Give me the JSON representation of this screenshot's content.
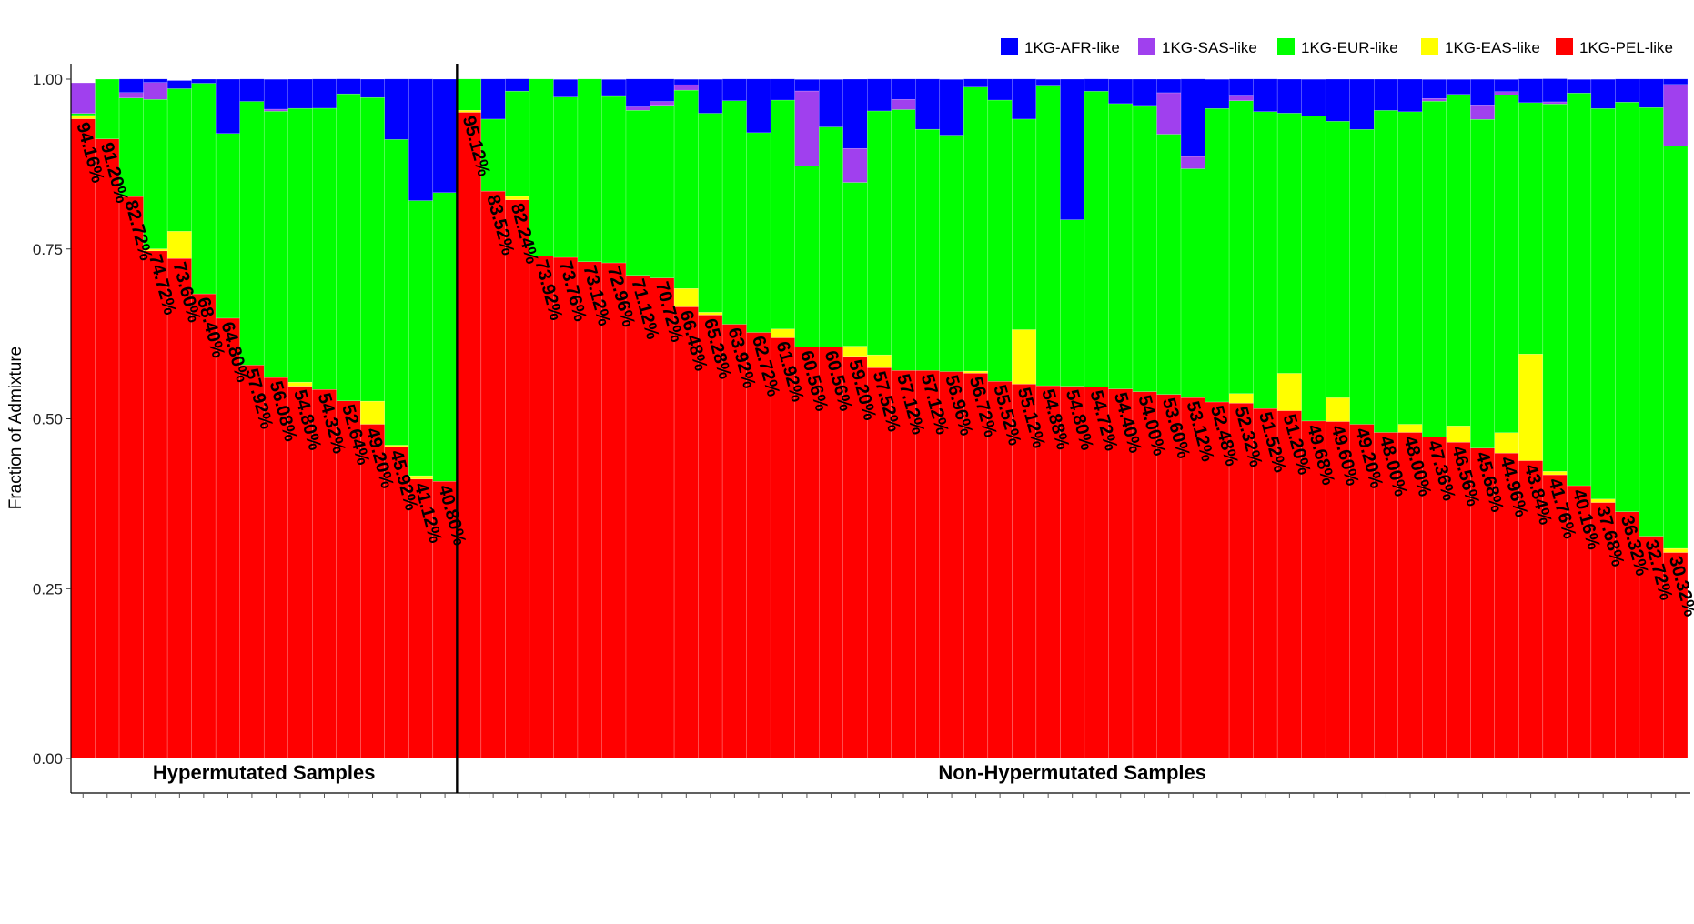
{
  "chart_data": {
    "type": "bar",
    "stacked": true,
    "ylabel": "Fraction of Admixture",
    "ylim": [
      0,
      1
    ],
    "yticks": [
      "0.00",
      "0.25",
      "0.50",
      "0.75",
      "1.00"
    ],
    "legend_position": "top-right",
    "series": [
      {
        "name": "1KG-PEL-like",
        "color": "#ff0000"
      },
      {
        "name": "1KG-EAS-like",
        "color": "#ffff00"
      },
      {
        "name": "1KG-EUR-like",
        "color": "#00ff00"
      },
      {
        "name": "1KG-SAS-like",
        "color": "#a040ee"
      },
      {
        "name": "1KG-AFR-like",
        "color": "#0000ff"
      }
    ],
    "legend_order": [
      "1KG-AFR-like",
      "1KG-SAS-like",
      "1KG-EUR-like",
      "1KG-EAS-like",
      "1KG-PEL-like"
    ],
    "groups": [
      {
        "name": "Hypermutated Samples",
        "samples": [
          {
            "label": "94.16%",
            "PEL": 0.9416,
            "EAS": 0.005,
            "EUR": 0.003,
            "SAS": 0.045,
            "AFR": 0.0
          },
          {
            "label": "91.20%",
            "PEL": 0.912,
            "EAS": 0.0,
            "EUR": 0.088,
            "SAS": 0.0,
            "AFR": 0.0
          },
          {
            "label": "82.72%",
            "PEL": 0.8272,
            "EAS": 0.0,
            "EUR": 0.145,
            "SAS": 0.008,
            "AFR": 0.02
          },
          {
            "label": "74.72%",
            "PEL": 0.7472,
            "EAS": 0.003,
            "EUR": 0.22,
            "SAS": 0.025,
            "AFR": 0.005
          },
          {
            "label": "73.60%",
            "PEL": 0.736,
            "EAS": 0.04,
            "EUR": 0.21,
            "SAS": 0.0,
            "AFR": 0.012
          },
          {
            "label": "68.40%",
            "PEL": 0.684,
            "EAS": 0.0,
            "EUR": 0.31,
            "SAS": 0.0,
            "AFR": 0.006
          },
          {
            "label": "64.80%",
            "PEL": 0.648,
            "EAS": 0.0,
            "EUR": 0.272,
            "SAS": 0.0,
            "AFR": 0.08
          },
          {
            "label": "57.92%",
            "PEL": 0.5792,
            "EAS": 0.0,
            "EUR": 0.388,
            "SAS": 0.0,
            "AFR": 0.033
          },
          {
            "label": "56.08%",
            "PEL": 0.5608,
            "EAS": 0.0,
            "EUR": 0.392,
            "SAS": 0.003,
            "AFR": 0.044
          },
          {
            "label": "54.80%",
            "PEL": 0.548,
            "EAS": 0.006,
            "EUR": 0.403,
            "SAS": 0.0,
            "AFR": 0.043
          },
          {
            "label": "54.32%",
            "PEL": 0.5432,
            "EAS": 0.0,
            "EUR": 0.414,
            "SAS": 0.0,
            "AFR": 0.043
          },
          {
            "label": "52.64%",
            "PEL": 0.5264,
            "EAS": 0.0,
            "EUR": 0.452,
            "SAS": 0.0,
            "AFR": 0.022
          },
          {
            "label": "49.20%",
            "PEL": 0.492,
            "EAS": 0.034,
            "EUR": 0.447,
            "SAS": 0.0,
            "AFR": 0.027
          },
          {
            "label": "45.92%",
            "PEL": 0.4592,
            "EAS": 0.002,
            "EUR": 0.45,
            "SAS": 0.0,
            "AFR": 0.089
          },
          {
            "label": "41.12%",
            "PEL": 0.4112,
            "EAS": 0.005,
            "EUR": 0.405,
            "SAS": 0.0,
            "AFR": 0.179
          },
          {
            "label": "40.80%",
            "PEL": 0.408,
            "EAS": 0.0,
            "EUR": 0.425,
            "SAS": 0.0,
            "AFR": 0.167
          }
        ]
      },
      {
        "name": "Non-Hypermutated Samples",
        "samples": [
          {
            "label": "95.12%",
            "PEL": 0.9512,
            "EAS": 0.003,
            "EUR": 0.046,
            "SAS": 0.0,
            "AFR": 0.0
          },
          {
            "label": "83.52%",
            "PEL": 0.8352,
            "EAS": 0.0,
            "EUR": 0.106,
            "SAS": 0.0,
            "AFR": 0.059
          },
          {
            "label": "82.24%",
            "PEL": 0.8224,
            "EAS": 0.005,
            "EUR": 0.155,
            "SAS": 0.0,
            "AFR": 0.018
          },
          {
            "label": "73.92%",
            "PEL": 0.7392,
            "EAS": 0.0,
            "EUR": 0.261,
            "SAS": 0.0,
            "AFR": 0.0
          },
          {
            "label": "73.76%",
            "PEL": 0.7376,
            "EAS": 0.0,
            "EUR": 0.236,
            "SAS": 0.0,
            "AFR": 0.026
          },
          {
            "label": "73.12%",
            "PEL": 0.7312,
            "EAS": 0.0,
            "EUR": 0.269,
            "SAS": 0.0,
            "AFR": 0.0
          },
          {
            "label": "72.96%",
            "PEL": 0.7296,
            "EAS": 0.0,
            "EUR": 0.245,
            "SAS": 0.0,
            "AFR": 0.025
          },
          {
            "label": "71.12%",
            "PEL": 0.7112,
            "EAS": 0.0,
            "EUR": 0.243,
            "SAS": 0.005,
            "AFR": 0.041
          },
          {
            "label": "70.72%",
            "PEL": 0.7072,
            "EAS": 0.0,
            "EUR": 0.253,
            "SAS": 0.007,
            "AFR": 0.033
          },
          {
            "label": "66.48%",
            "PEL": 0.6648,
            "EAS": 0.027,
            "EUR": 0.292,
            "SAS": 0.008,
            "AFR": 0.008
          },
          {
            "label": "65.28%",
            "PEL": 0.6528,
            "EAS": 0.004,
            "EUR": 0.293,
            "SAS": 0.0,
            "AFR": 0.05
          },
          {
            "label": "63.92%",
            "PEL": 0.6392,
            "EAS": 0.0,
            "EUR": 0.329,
            "SAS": 0.0,
            "AFR": 0.032
          },
          {
            "label": "62.72%",
            "PEL": 0.6272,
            "EAS": 0.0,
            "EUR": 0.294,
            "SAS": 0.0,
            "AFR": 0.079
          },
          {
            "label": "61.92%",
            "PEL": 0.6192,
            "EAS": 0.013,
            "EUR": 0.337,
            "SAS": 0.0,
            "AFR": 0.031
          },
          {
            "label": "60.56%",
            "PEL": 0.6056,
            "EAS": 0.0,
            "EUR": 0.267,
            "SAS": 0.11,
            "AFR": 0.017
          },
          {
            "label": "60.56%",
            "PEL": 0.6056,
            "EAS": 0.0,
            "EUR": 0.324,
            "SAS": 0.0,
            "AFR": 0.07
          },
          {
            "label": "59.20%",
            "PEL": 0.592,
            "EAS": 0.015,
            "EUR": 0.241,
            "SAS": 0.05,
            "AFR": 0.102
          },
          {
            "label": "57.52%",
            "PEL": 0.5752,
            "EAS": 0.019,
            "EUR": 0.359,
            "SAS": 0.0,
            "AFR": 0.047
          },
          {
            "label": "57.12%",
            "PEL": 0.5712,
            "EAS": 0.0,
            "EUR": 0.384,
            "SAS": 0.015,
            "AFR": 0.03
          },
          {
            "label": "57.12%",
            "PEL": 0.5712,
            "EAS": 0.0,
            "EUR": 0.355,
            "SAS": 0.0,
            "AFR": 0.074
          },
          {
            "label": "56.96%",
            "PEL": 0.5696,
            "EAS": 0.0,
            "EUR": 0.348,
            "SAS": 0.0,
            "AFR": 0.082
          },
          {
            "label": "56.72%",
            "PEL": 0.5672,
            "EAS": 0.003,
            "EUR": 0.418,
            "SAS": 0.0,
            "AFR": 0.012
          },
          {
            "label": "55.52%",
            "PEL": 0.5552,
            "EAS": 0.0,
            "EUR": 0.414,
            "SAS": 0.0,
            "AFR": 0.031
          },
          {
            "label": "55.12%",
            "PEL": 0.5512,
            "EAS": 0.08,
            "EUR": 0.31,
            "SAS": 0.0,
            "AFR": 0.059
          },
          {
            "label": "54.88%",
            "PEL": 0.5488,
            "EAS": 0.0,
            "EUR": 0.441,
            "SAS": 0.0,
            "AFR": 0.01
          },
          {
            "label": "54.80%",
            "PEL": 0.548,
            "EAS": 0.0,
            "EUR": 0.245,
            "SAS": 0.0,
            "AFR": 0.207
          },
          {
            "label": "54.72%",
            "PEL": 0.5472,
            "EAS": 0.0,
            "EUR": 0.435,
            "SAS": 0.0,
            "AFR": 0.018
          },
          {
            "label": "54.40%",
            "PEL": 0.544,
            "EAS": 0.0,
            "EUR": 0.42,
            "SAS": 0.0,
            "AFR": 0.036
          },
          {
            "label": "54.00%",
            "PEL": 0.54,
            "EAS": 0.0,
            "EUR": 0.42,
            "SAS": 0.0,
            "AFR": 0.04
          },
          {
            "label": "53.60%",
            "PEL": 0.536,
            "EAS": 0.0,
            "EUR": 0.383,
            "SAS": 0.061,
            "AFR": 0.02
          },
          {
            "label": "53.12%",
            "PEL": 0.5312,
            "EAS": 0.0,
            "EUR": 0.337,
            "SAS": 0.018,
            "AFR": 0.114
          },
          {
            "label": "52.48%",
            "PEL": 0.5248,
            "EAS": 0.0,
            "EUR": 0.432,
            "SAS": 0.0,
            "AFR": 0.043
          },
          {
            "label": "52.32%",
            "PEL": 0.5232,
            "EAS": 0.014,
            "EUR": 0.431,
            "SAS": 0.007,
            "AFR": 0.025
          },
          {
            "label": "51.52%",
            "PEL": 0.5152,
            "EAS": 0.0,
            "EUR": 0.437,
            "SAS": 0.0,
            "AFR": 0.048
          },
          {
            "label": "51.20%",
            "PEL": 0.512,
            "EAS": 0.055,
            "EUR": 0.383,
            "SAS": 0.0,
            "AFR": 0.05
          },
          {
            "label": "49.68%",
            "PEL": 0.4968,
            "EAS": 0.0,
            "EUR": 0.449,
            "SAS": 0.0,
            "AFR": 0.054
          },
          {
            "label": "49.60%",
            "PEL": 0.496,
            "EAS": 0.035,
            "EUR": 0.407,
            "SAS": 0.0,
            "AFR": 0.062
          },
          {
            "label": "49.20%",
            "PEL": 0.492,
            "EAS": 0.0,
            "EUR": 0.434,
            "SAS": 0.0,
            "AFR": 0.074
          },
          {
            "label": "48.00%",
            "PEL": 0.48,
            "EAS": 0.0,
            "EUR": 0.474,
            "SAS": 0.0,
            "AFR": 0.046
          },
          {
            "label": "48.00%",
            "PEL": 0.48,
            "EAS": 0.012,
            "EUR": 0.46,
            "SAS": 0.0,
            "AFR": 0.048
          },
          {
            "label": "47.36%",
            "PEL": 0.4736,
            "EAS": 0.0,
            "EUR": 0.494,
            "SAS": 0.004,
            "AFR": 0.028
          },
          {
            "label": "46.56%",
            "PEL": 0.4656,
            "EAS": 0.024,
            "EUR": 0.488,
            "SAS": 0.0,
            "AFR": 0.022
          },
          {
            "label": "45.68%",
            "PEL": 0.4568,
            "EAS": 0.0,
            "EUR": 0.484,
            "SAS": 0.02,
            "AFR": 0.039
          },
          {
            "label": "44.96%",
            "PEL": 0.4496,
            "EAS": 0.03,
            "EUR": 0.497,
            "SAS": 0.005,
            "AFR": 0.018
          },
          {
            "label": "43.84%",
            "PEL": 0.4384,
            "EAS": 0.157,
            "EUR": 0.37,
            "SAS": 0.0,
            "AFR": 0.035
          },
          {
            "label": "41.76%",
            "PEL": 0.4176,
            "EAS": 0.005,
            "EUR": 0.541,
            "SAS": 0.003,
            "AFR": 0.034
          },
          {
            "label": "40.16%",
            "PEL": 0.4016,
            "EAS": 0.0,
            "EUR": 0.578,
            "SAS": 0.0,
            "AFR": 0.02
          },
          {
            "label": "37.68%",
            "PEL": 0.3768,
            "EAS": 0.005,
            "EUR": 0.575,
            "SAS": 0.0,
            "AFR": 0.043
          },
          {
            "label": "36.32%",
            "PEL": 0.3632,
            "EAS": 0.0,
            "EUR": 0.603,
            "SAS": 0.0,
            "AFR": 0.034
          },
          {
            "label": "32.72%",
            "PEL": 0.3272,
            "EAS": 0.0,
            "EUR": 0.631,
            "SAS": 0.0,
            "AFR": 0.042
          },
          {
            "label": "30.32%",
            "PEL": 0.3032,
            "EAS": 0.006,
            "EUR": 0.592,
            "SAS": 0.091,
            "AFR": 0.008
          }
        ]
      }
    ]
  }
}
